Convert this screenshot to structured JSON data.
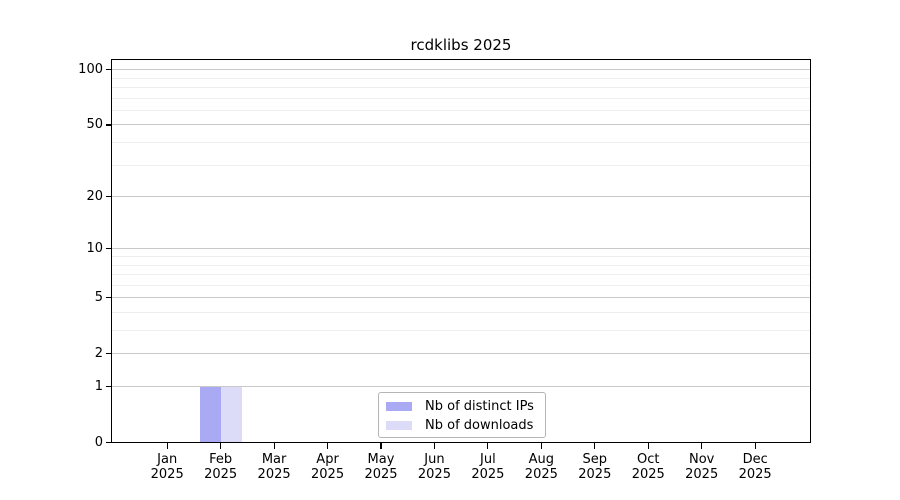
{
  "chart_data": {
    "type": "bar",
    "title": "rcdklibs 2025",
    "x_months": [
      "Jan",
      "Feb",
      "Mar",
      "Apr",
      "May",
      "Jun",
      "Jul",
      "Aug",
      "Sep",
      "Oct",
      "Nov",
      "Dec"
    ],
    "x_year": "2025",
    "series": [
      {
        "name": "Nb of distinct IPs",
        "color": "#aaaaf4",
        "values": [
          0,
          1,
          0,
          0,
          0,
          0,
          0,
          0,
          0,
          0,
          0,
          0
        ]
      },
      {
        "name": "Nb of downloads",
        "color": "#dcdcf9",
        "values": [
          0,
          1,
          0,
          0,
          0,
          0,
          0,
          0,
          0,
          0,
          0,
          0
        ]
      }
    ],
    "yscale": "log1p",
    "yticks": [
      0,
      1,
      2,
      5,
      10,
      20,
      50,
      100
    ],
    "yminorticks": [
      3,
      4,
      6,
      7,
      8,
      9,
      30,
      40,
      60,
      70,
      80,
      90
    ],
    "ylim": [
      0,
      112
    ],
    "grid": "horizontal major+minor",
    "legend_position": "bottom-center"
  },
  "colors": {
    "axis": "#000000",
    "grid_major": "#c9c9c9",
    "grid_minor": "#eeeeee",
    "legend_border": "#b5b5b5",
    "background": "#ffffff"
  }
}
